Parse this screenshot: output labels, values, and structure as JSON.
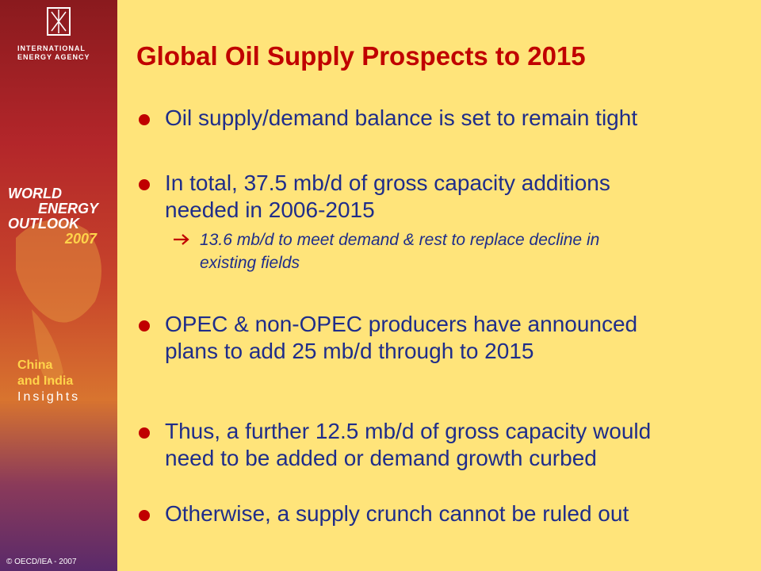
{
  "sidebar": {
    "agency_lines": [
      "INTERNATIONAL",
      "ENERGY AGENCY"
    ],
    "report_lines": [
      "WORLD",
      "ENERGY",
      "OUTLOOK",
      "2007"
    ],
    "edition_lines": [
      "China",
      "and India",
      "Insights"
    ],
    "copyright": "© OECD/IEA - 2007"
  },
  "title": "Global Oil Supply Prospects to 2015",
  "bullets": [
    {
      "lines": [
        "Oil supply/demand balance is set to remain tight"
      ]
    },
    {
      "lines": [
        "In total, 37.5 mb/d of gross capacity additions",
        "needed in 2006-2015"
      ],
      "sub": [
        "13.6 mb/d to meet demand & rest to replace decline in",
        "existing fields"
      ]
    },
    {
      "lines": [
        "OPEC & non-OPEC producers have announced",
        "plans to add 25 mb/d through to 2015"
      ]
    },
    {
      "lines": [
        "Thus, a further 12.5 mb/d of gross capacity would",
        "need to be added or demand growth curbed"
      ]
    },
    {
      "lines": [
        "Otherwise, a supply crunch cannot be ruled out"
      ]
    }
  ]
}
